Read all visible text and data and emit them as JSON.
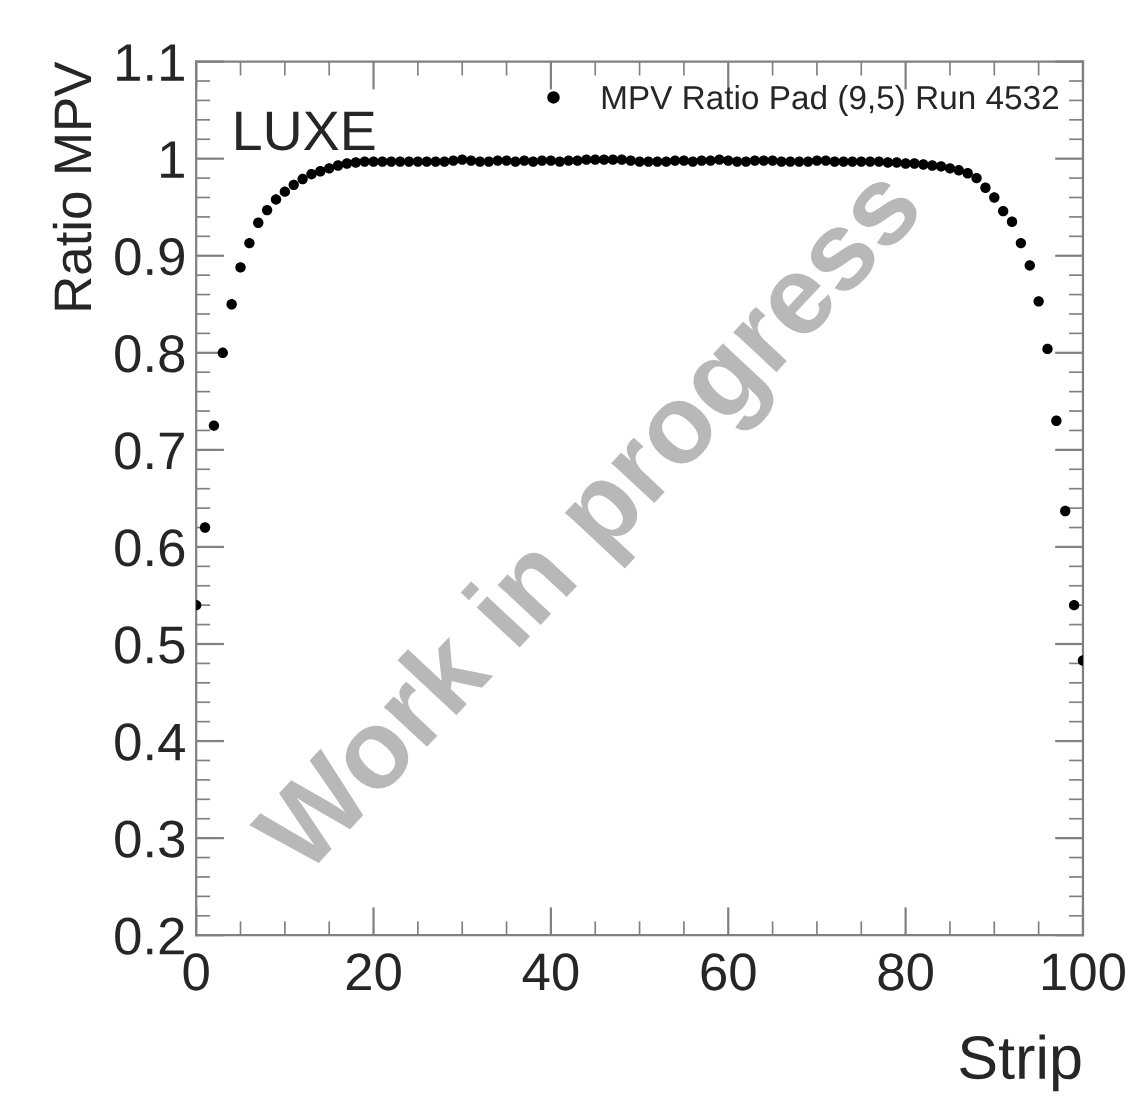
{
  "chart_data": {
    "type": "scatter",
    "xlabel": "Strip",
    "ylabel": "Ratio MPV",
    "x": [
      0,
      1,
      2,
      3,
      4,
      5,
      6,
      7,
      8,
      9,
      10,
      11,
      12,
      13,
      14,
      15,
      16,
      17,
      18,
      19,
      20,
      21,
      22,
      23,
      24,
      25,
      26,
      27,
      28,
      29,
      30,
      31,
      32,
      33,
      34,
      35,
      36,
      37,
      38,
      39,
      40,
      41,
      42,
      43,
      44,
      45,
      46,
      47,
      48,
      49,
      50,
      51,
      52,
      53,
      54,
      55,
      56,
      57,
      58,
      59,
      60,
      61,
      62,
      63,
      64,
      65,
      66,
      67,
      68,
      69,
      70,
      71,
      72,
      73,
      74,
      75,
      76,
      77,
      78,
      79,
      80,
      81,
      82,
      83,
      84,
      85,
      86,
      87,
      88,
      89,
      90,
      91,
      92,
      93,
      94,
      95,
      96,
      97,
      98,
      99,
      100
    ],
    "series": [
      {
        "name": "MPV Ratio Pad (9,5) Run 4532",
        "color": "#000000",
        "values": [
          0.54,
          0.62,
          0.725,
          0.8,
          0.85,
          0.888,
          0.913,
          0.934,
          0.947,
          0.958,
          0.966,
          0.973,
          0.979,
          0.984,
          0.987,
          0.99,
          0.993,
          0.995,
          0.996,
          0.997,
          0.997,
          0.997,
          0.997,
          0.997,
          0.997,
          0.997,
          0.997,
          0.997,
          0.997,
          0.998,
          0.999,
          0.998,
          0.997,
          0.997,
          0.998,
          0.998,
          0.997,
          0.998,
          0.997,
          0.998,
          0.998,
          0.997,
          0.998,
          0.998,
          0.999,
          0.999,
          0.999,
          0.999,
          0.999,
          0.998,
          0.997,
          0.997,
          0.997,
          0.997,
          0.998,
          0.998,
          0.997,
          0.998,
          0.998,
          0.999,
          0.998,
          0.997,
          0.997,
          0.998,
          0.998,
          0.998,
          0.997,
          0.997,
          0.997,
          0.997,
          0.998,
          0.998,
          0.997,
          0.997,
          0.997,
          0.997,
          0.997,
          0.997,
          0.996,
          0.996,
          0.995,
          0.995,
          0.994,
          0.993,
          0.992,
          0.99,
          0.988,
          0.985,
          0.98,
          0.97,
          0.96,
          0.946,
          0.935,
          0.913,
          0.89,
          0.853,
          0.804,
          0.73,
          0.637,
          0.54,
          0.483
        ]
      }
    ],
    "xlim": [
      0,
      100
    ],
    "xticks": [
      0,
      20,
      40,
      60,
      80,
      100
    ],
    "ylim": [
      0.2,
      1.1
    ],
    "yticks": [
      0.2,
      0.3,
      0.4,
      0.5,
      0.6,
      0.7,
      0.8,
      0.9,
      1,
      1.1
    ],
    "marker": "circle",
    "legend": "top right",
    "grid": false,
    "annotations": [
      "LUXE",
      "Work in progress"
    ]
  }
}
